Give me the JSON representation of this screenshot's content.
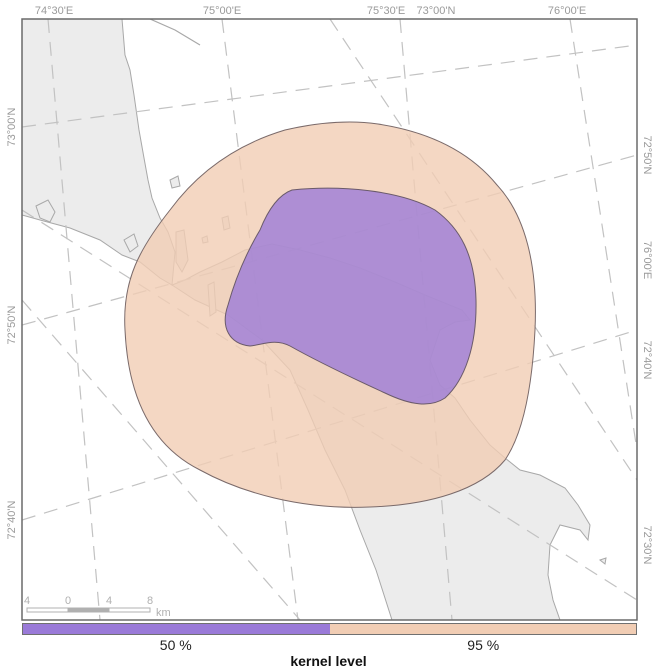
{
  "map": {
    "top_labels": [
      "74°30'E",
      "75°00'E",
      "75°30'E",
      "73°00'N",
      "76°00'E"
    ],
    "left_labels": [
      "73°00'N",
      "72°50'N",
      "72°40'N"
    ],
    "right_labels": [
      "72°50'N",
      "76°00'E",
      "72°40'N",
      "72°30'N"
    ],
    "scale_bar": {
      "ticks": [
        "4",
        "0",
        "4",
        "8"
      ],
      "unit": "km"
    }
  },
  "legend": {
    "title": "kernel level",
    "levels": [
      {
        "label": "50 %",
        "color": "#9a7ad8"
      },
      {
        "label": "95 %",
        "color": "#f1cdb4"
      }
    ]
  },
  "colors": {
    "land": "#ececec",
    "land_stroke": "#a8a8a8",
    "graticule": "#c2c2c2",
    "frame": "#6a6a6a",
    "contour_stroke": "#7a6a6a"
  }
}
